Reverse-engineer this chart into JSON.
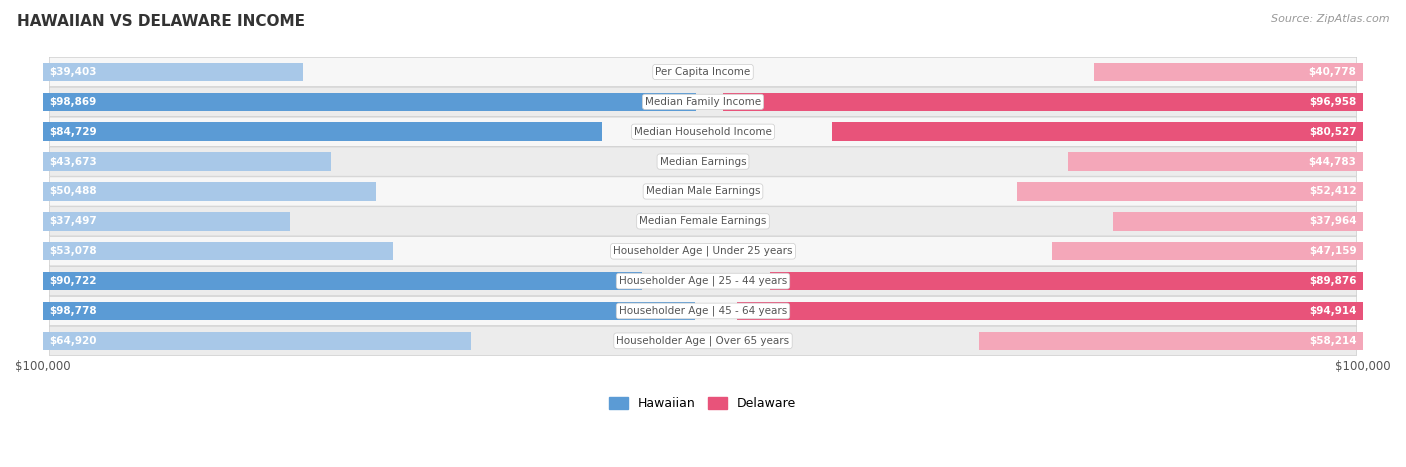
{
  "title": "HAWAIIAN VS DELAWARE INCOME",
  "source": "Source: ZipAtlas.com",
  "categories": [
    "Per Capita Income",
    "Median Family Income",
    "Median Household Income",
    "Median Earnings",
    "Median Male Earnings",
    "Median Female Earnings",
    "Householder Age | Under 25 years",
    "Householder Age | 25 - 44 years",
    "Householder Age | 45 - 64 years",
    "Householder Age | Over 65 years"
  ],
  "hawaiian_values": [
    39403,
    98869,
    84729,
    43673,
    50488,
    37497,
    53078,
    90722,
    98778,
    64920
  ],
  "delaware_values": [
    40778,
    96958,
    80527,
    44783,
    52412,
    37964,
    47159,
    89876,
    94914,
    58214
  ],
  "hawaiian_color_light": "#a8c8e8",
  "hawaiian_color_dark": "#5b9bd5",
  "delaware_color_light": "#f4a7b9",
  "delaware_color_dark": "#e8537a",
  "hawaiian_label": "Hawaiian",
  "delaware_label": "Delaware",
  "max_value": 100000,
  "bar_height": 0.62,
  "bg_color": "#ffffff",
  "row_bg_light": "#f0f0f0",
  "row_bg_dark": "#e0e0e8",
  "label_color_inside": "#ffffff",
  "label_color_outside": "#555555",
  "center_label_bg": "#ffffff",
  "center_label_color": "#555555",
  "title_color": "#333333",
  "source_color": "#999999",
  "dark_threshold": 70000
}
